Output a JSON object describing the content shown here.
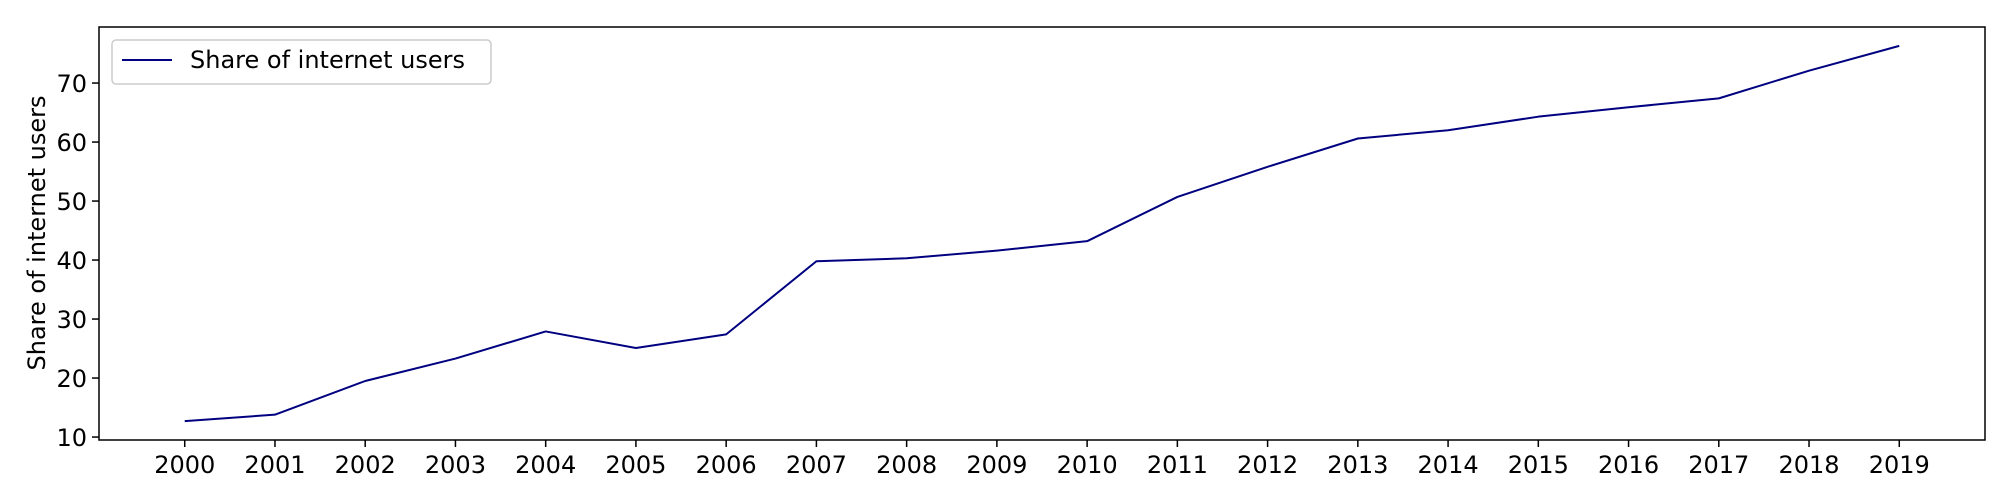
{
  "chart_data": {
    "type": "line",
    "title": "",
    "xlabel": "",
    "ylabel": "Share of internet users",
    "x": [
      2000,
      2001,
      2002,
      2003,
      2004,
      2005,
      2006,
      2007,
      2008,
      2009,
      2010,
      2011,
      2012,
      2013,
      2014,
      2015,
      2016,
      2017,
      2018,
      2019
    ],
    "series": [
      {
        "name": "Share of internet users",
        "color": "#000080",
        "values": [
          12.7,
          13.8,
          19.5,
          23.3,
          27.9,
          25.1,
          27.4,
          39.8,
          40.3,
          41.6,
          43.2,
          50.7,
          55.8,
          60.6,
          62.0,
          64.3,
          65.9,
          67.4,
          72.1,
          76.3
        ]
      }
    ],
    "xticks": [
      "2000",
      "2001",
      "2002",
      "2003",
      "2004",
      "2005",
      "2006",
      "2007",
      "2008",
      "2009",
      "2010",
      "2011",
      "2012",
      "2013",
      "2014",
      "2015",
      "2016",
      "2017",
      "2018",
      "2019"
    ],
    "yticks": [
      10,
      20,
      30,
      40,
      50,
      60,
      70
    ],
    "ylim": [
      9.5,
      79.5
    ],
    "xlim": [
      1999.05,
      2019.95
    ],
    "grid": false,
    "legend_position": "top-left"
  }
}
